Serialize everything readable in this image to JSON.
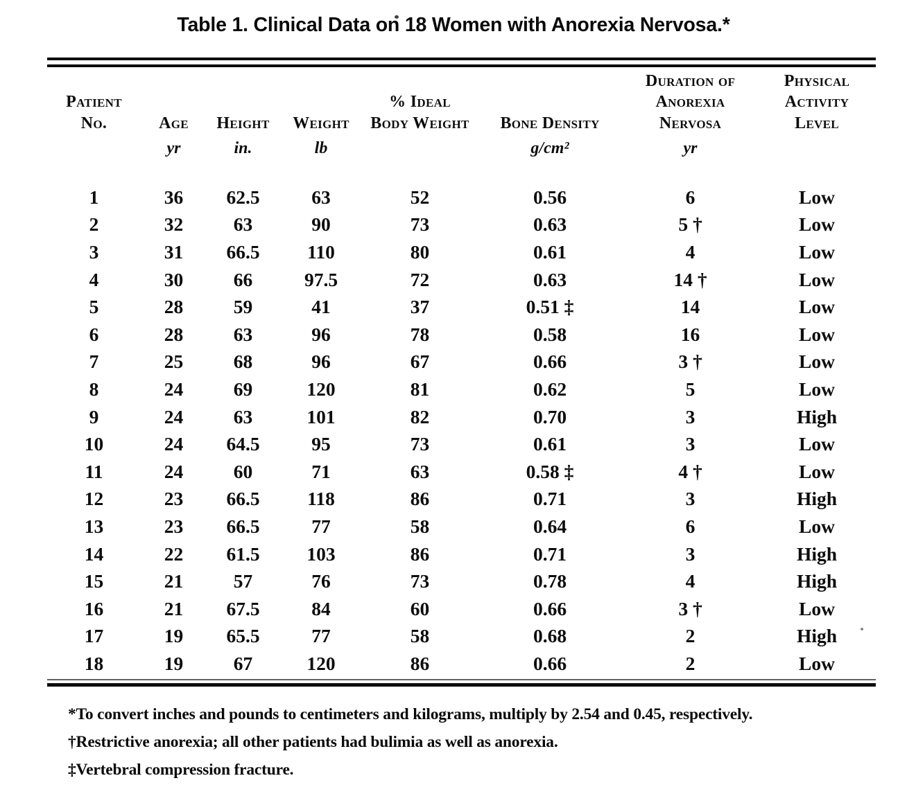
{
  "colors": {
    "paper": "#ffffff",
    "ink": "#0d0d0d"
  },
  "title": "Table 1. Clinical Data on 18 Women with Anorexia Nervosa.*",
  "table": {
    "columns": [
      {
        "id": "patient-no",
        "lines": [
          "Patient",
          "No."
        ],
        "unit": ""
      },
      {
        "id": "age",
        "lines": [
          "Age"
        ],
        "unit": "yr"
      },
      {
        "id": "height",
        "lines": [
          "Height"
        ],
        "unit": "in."
      },
      {
        "id": "weight",
        "lines": [
          "Weight"
        ],
        "unit": "lb"
      },
      {
        "id": "pct-ideal-body-weight",
        "lines": [
          "% Ideal",
          "Body Weight"
        ],
        "unit": ""
      },
      {
        "id": "bone-density",
        "lines": [
          "Bone Density"
        ],
        "unit": "g/cm²"
      },
      {
        "id": "duration-of-anorexia-nervosa",
        "lines": [
          "Duration of",
          "Anorexia Nervosa"
        ],
        "unit": "yr"
      },
      {
        "id": "physical-activity-level",
        "lines": [
          "Physical",
          "Activity",
          "Level"
        ],
        "unit": ""
      }
    ],
    "rows": [
      [
        "1",
        "36",
        "62.5",
        "63",
        "52",
        "0.56",
        "6",
        "Low"
      ],
      [
        "2",
        "32",
        "63",
        "90",
        "73",
        "0.63",
        "5 †",
        "Low"
      ],
      [
        "3",
        "31",
        "66.5",
        "110",
        "80",
        "0.61",
        "4",
        "Low"
      ],
      [
        "4",
        "30",
        "66",
        "97.5",
        "72",
        "0.63",
        "14 †",
        "Low"
      ],
      [
        "5",
        "28",
        "59",
        "41",
        "37",
        "0.51 ‡",
        "14",
        "Low"
      ],
      [
        "6",
        "28",
        "63",
        "96",
        "78",
        "0.58",
        "16",
        "Low"
      ],
      [
        "7",
        "25",
        "68",
        "96",
        "67",
        "0.66",
        "3 †",
        "Low"
      ],
      [
        "8",
        "24",
        "69",
        "120",
        "81",
        "0.62",
        "5",
        "Low"
      ],
      [
        "9",
        "24",
        "63",
        "101",
        "82",
        "0.70",
        "3",
        "High"
      ],
      [
        "10",
        "24",
        "64.5",
        "95",
        "73",
        "0.61",
        "3",
        "Low"
      ],
      [
        "11",
        "24",
        "60",
        "71",
        "63",
        "0.58 ‡",
        "4 †",
        "Low"
      ],
      [
        "12",
        "23",
        "66.5",
        "118",
        "86",
        "0.71",
        "3",
        "High"
      ],
      [
        "13",
        "23",
        "66.5",
        "77",
        "58",
        "0.64",
        "6",
        "Low"
      ],
      [
        "14",
        "22",
        "61.5",
        "103",
        "86",
        "0.71",
        "3",
        "High"
      ],
      [
        "15",
        "21",
        "57",
        "76",
        "73",
        "0.78",
        "4",
        "High"
      ],
      [
        "16",
        "21",
        "67.5",
        "84",
        "60",
        "0.66",
        "3 †",
        "Low"
      ],
      [
        "17",
        "19",
        "65.5",
        "77",
        "58",
        "0.68",
        "2",
        "High"
      ],
      [
        "18",
        "19",
        "67",
        "120",
        "86",
        "0.66",
        "2",
        "Low"
      ]
    ]
  },
  "footnotes": [
    "*To convert inches and pounds to centimeters and kilograms, multiply by 2.54 and 0.45, respectively.",
    "†Restrictive anorexia; all other patients had bulimia as well as anorexia.",
    "‡Vertebral compression fracture."
  ]
}
